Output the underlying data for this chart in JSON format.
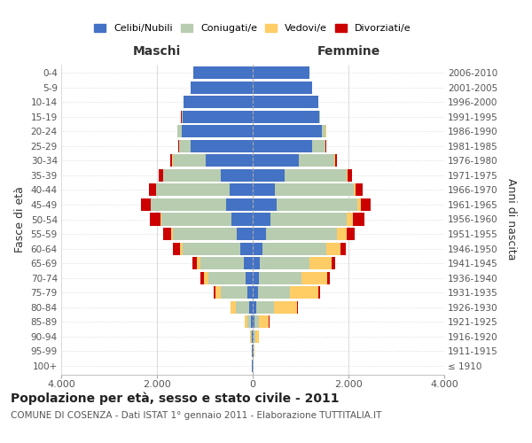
{
  "age_groups": [
    "100+",
    "95-99",
    "90-94",
    "85-89",
    "80-84",
    "75-79",
    "70-74",
    "65-69",
    "60-64",
    "55-59",
    "50-54",
    "45-49",
    "40-44",
    "35-39",
    "30-34",
    "25-29",
    "20-24",
    "15-19",
    "10-14",
    "5-9",
    "0-4"
  ],
  "birth_years": [
    "≤ 1910",
    "1911-1915",
    "1916-1920",
    "1921-1925",
    "1926-1930",
    "1931-1935",
    "1936-1940",
    "1941-1945",
    "1946-1950",
    "1951-1955",
    "1956-1960",
    "1961-1965",
    "1966-1970",
    "1971-1975",
    "1976-1980",
    "1981-1985",
    "1986-1990",
    "1991-1995",
    "1996-2000",
    "2001-2005",
    "2006-2010"
  ],
  "maschi": {
    "celibi": [
      10,
      12,
      18,
      35,
      75,
      120,
      155,
      185,
      265,
      335,
      445,
      555,
      475,
      675,
      985,
      1290,
      1490,
      1470,
      1440,
      1290,
      1240
    ],
    "coniugati": [
      4,
      8,
      25,
      75,
      270,
      540,
      770,
      910,
      1190,
      1340,
      1470,
      1570,
      1540,
      1190,
      690,
      240,
      75,
      18,
      4,
      0,
      0
    ],
    "vedovi": [
      2,
      4,
      12,
      55,
      115,
      125,
      95,
      75,
      55,
      25,
      18,
      8,
      4,
      4,
      4,
      4,
      4,
      2,
      0,
      0,
      0
    ],
    "divorziati": [
      1,
      2,
      4,
      8,
      12,
      28,
      75,
      95,
      155,
      175,
      215,
      195,
      145,
      95,
      45,
      18,
      8,
      4,
      0,
      0,
      0
    ]
  },
  "femmine": {
    "nubili": [
      8,
      12,
      22,
      35,
      75,
      115,
      125,
      145,
      195,
      275,
      375,
      495,
      465,
      675,
      970,
      1240,
      1440,
      1390,
      1370,
      1240,
      1190
    ],
    "coniugate": [
      4,
      8,
      25,
      95,
      370,
      670,
      890,
      1040,
      1340,
      1490,
      1590,
      1690,
      1640,
      1290,
      740,
      270,
      85,
      18,
      4,
      0,
      0
    ],
    "vedove": [
      8,
      22,
      75,
      210,
      490,
      590,
      540,
      470,
      290,
      190,
      125,
      75,
      35,
      18,
      8,
      8,
      4,
      2,
      0,
      0,
      0
    ],
    "divorziate": [
      1,
      2,
      4,
      8,
      12,
      28,
      55,
      75,
      125,
      175,
      235,
      205,
      155,
      95,
      45,
      18,
      8,
      4,
      0,
      0,
      0
    ]
  },
  "colors": {
    "celibi_nubili": "#4472C4",
    "coniugati": "#B8CCB0",
    "vedovi": "#FFCC66",
    "divorziati": "#CC0000"
  },
  "xlim": 4000,
  "xticks": [
    -4000,
    -2000,
    0,
    2000,
    4000
  ],
  "xticklabels": [
    "4.000",
    "2.000",
    "0",
    "2.000",
    "4.000"
  ],
  "ylabel_left": "Fasce di età",
  "ylabel_right": "Anni di nascita",
  "legend_labels": [
    "Celibi/Nubili",
    "Coniugati/e",
    "Vedovi/e",
    "Divorziati/e"
  ],
  "title": "Popolazione per età, sesso e stato civile - 2011",
  "subtitle": "COMUNE DI COSENZA - Dati ISTAT 1° gennaio 2011 - Elaborazione TUTTITALIA.IT",
  "maschi_label": "Maschi",
  "femmine_label": "Femmine",
  "bg_color": "#FFFFFF",
  "grid_color": "#CCCCCC"
}
